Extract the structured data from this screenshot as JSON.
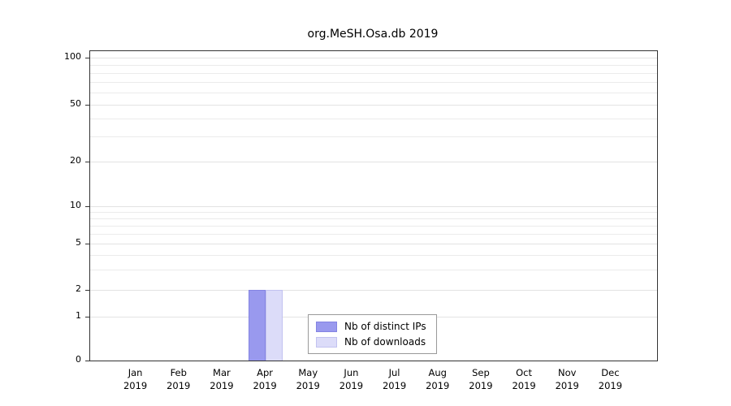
{
  "chart_data": {
    "type": "bar",
    "title": "org.MeSH.Osa.db 2019",
    "categories": [
      "Jan",
      "Feb",
      "Mar",
      "Apr",
      "May",
      "Jun",
      "Jul",
      "Aug",
      "Sep",
      "Oct",
      "Nov",
      "Dec"
    ],
    "x_year": "2019",
    "series": [
      {
        "name": "Nb of distinct IPs",
        "color": "#9999ee",
        "border_color": "#8484e2",
        "values": [
          0,
          0,
          0,
          2,
          0,
          0,
          0,
          0,
          0,
          0,
          0,
          0
        ]
      },
      {
        "name": "Nb of downloads",
        "color": "#dcdcf9",
        "border_color": "#c2c2f0",
        "values": [
          0,
          0,
          0,
          2,
          0,
          0,
          0,
          0,
          0,
          0,
          0,
          0
        ]
      }
    ],
    "y_ticks": [
      0,
      1,
      2,
      5,
      10,
      20,
      50,
      100
    ],
    "minor_gridlines": [
      1,
      2,
      3,
      4,
      5,
      6,
      7,
      8,
      9,
      10,
      20,
      30,
      40,
      50,
      60,
      70,
      80,
      90,
      100
    ],
    "y_scale": "log",
    "ylim": [
      0,
      100
    ],
    "grid": true,
    "legend": {
      "position": "bottom-center",
      "entries": [
        "Nb of distinct IPs",
        "Nb of downloads"
      ]
    }
  }
}
